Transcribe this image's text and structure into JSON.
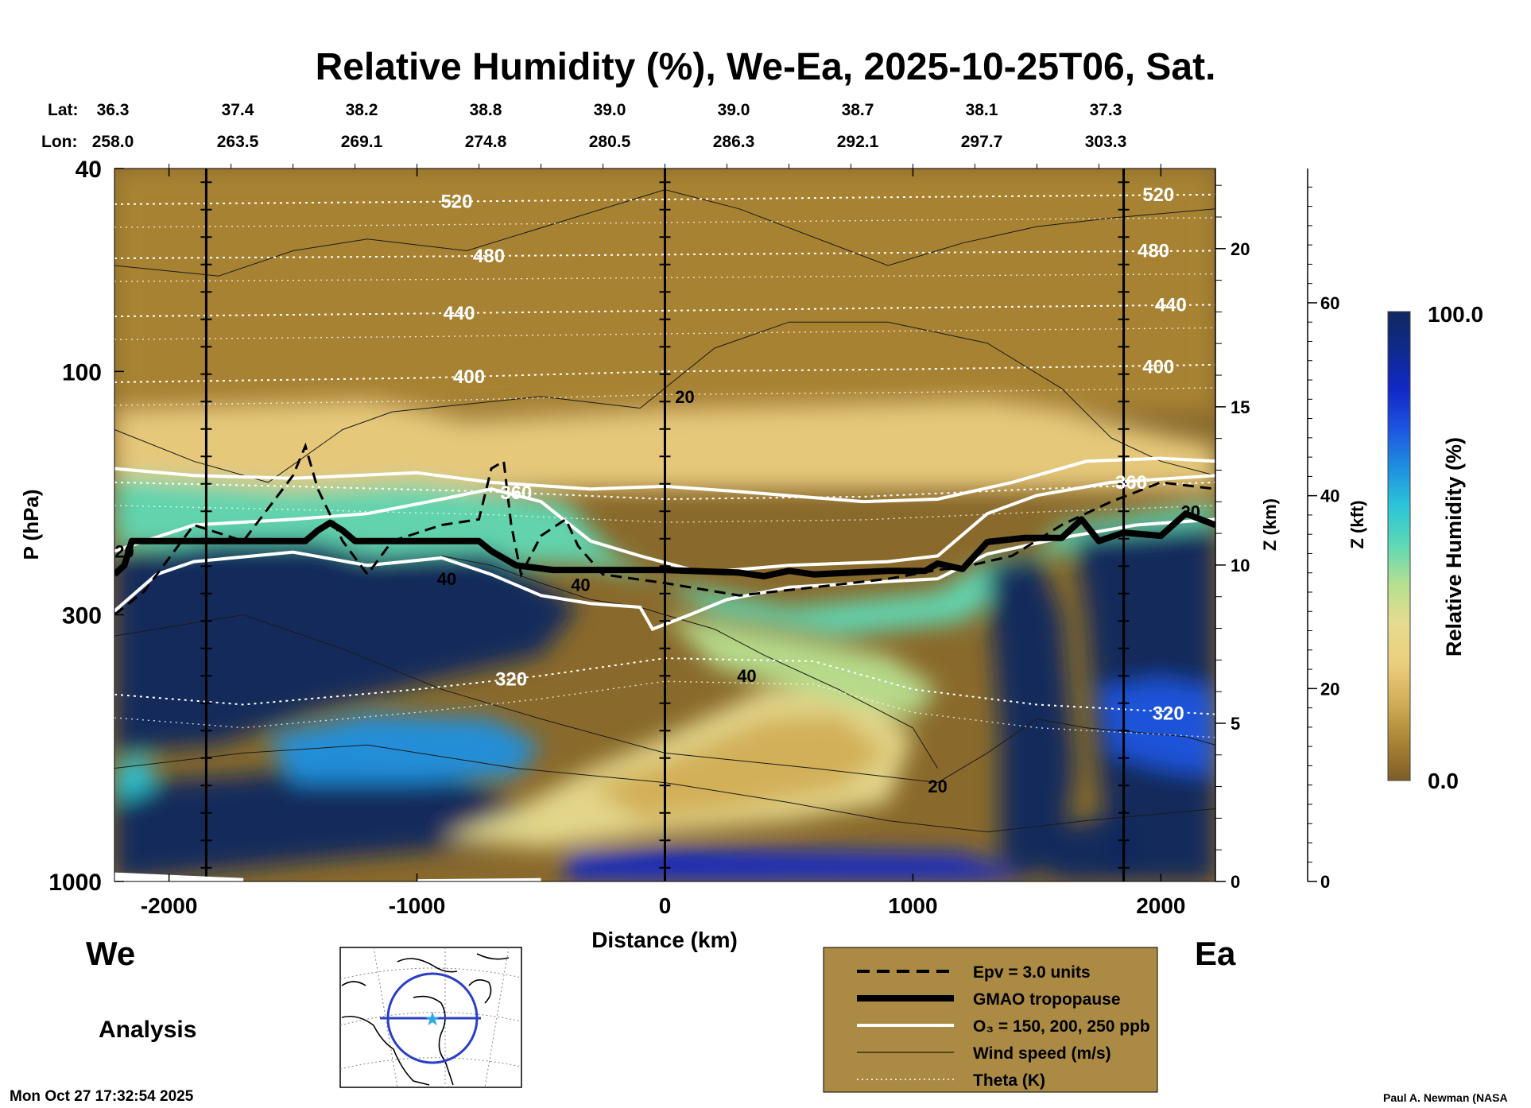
{
  "chart_data": {
    "type": "heatmap",
    "title": "Relative Humidity (%), We-Ea, 2025-10-25T06, Sat.",
    "xlabel": "Distance (km)",
    "ylabel": "P (hPa)",
    "z_km_label": "Z (km)",
    "z_kft_label": "Z (kft)",
    "colorbar_label": "Relative Humidity (%)",
    "colorbar_max_label": "100.0",
    "colorbar_min_label": "0.0",
    "colorbar_range": [
      0,
      100
    ],
    "xlim": [
      -2220,
      2220
    ],
    "ylim_hpa": [
      1000,
      40
    ],
    "x_ticks": [
      -2000,
      -1000,
      0,
      1000,
      2000
    ],
    "x_tick_labels": [
      "-2000",
      "-1000",
      "0",
      "1000",
      "2000"
    ],
    "p_ticks": [
      40,
      100,
      300,
      1000
    ],
    "p_tick_labels": [
      "40",
      "100",
      "300",
      "1000"
    ],
    "zkm_ticks": [
      0,
      5,
      10,
      15,
      20
    ],
    "zkm_tick_labels": [
      "0",
      "5",
      "10",
      "15",
      "20"
    ],
    "zkft_ticks": [
      0,
      20,
      40,
      60
    ],
    "zkft_tick_labels": [
      "0",
      "20",
      "40",
      "60"
    ],
    "lat_label": "Lat:",
    "lon_label": "Lon:",
    "lat_values": [
      "36.3",
      "37.4",
      "38.2",
      "38.8",
      "39.0",
      "39.0",
      "38.7",
      "38.1",
      "37.3"
    ],
    "lon_values": [
      "258.0",
      "263.5",
      "269.1",
      "274.8",
      "280.5",
      "286.3",
      "292.1",
      "297.7",
      "303.3"
    ],
    "vertical_markers_km": [
      -1850,
      0,
      1850
    ],
    "tropopause_hpa": [
      [
        -2220,
        250
      ],
      [
        -2180,
        240
      ],
      [
        -2150,
        215
      ],
      [
        -1900,
        215
      ],
      [
        -1450,
        215
      ],
      [
        -1400,
        205
      ],
      [
        -1350,
        198
      ],
      [
        -1300,
        205
      ],
      [
        -1250,
        215
      ],
      [
        -750,
        215
      ],
      [
        -700,
        225
      ],
      [
        -600,
        240
      ],
      [
        -450,
        245
      ],
      [
        0,
        245
      ],
      [
        300,
        248
      ],
      [
        400,
        252
      ],
      [
        500,
        246
      ],
      [
        600,
        250
      ],
      [
        900,
        246
      ],
      [
        1050,
        246
      ],
      [
        1100,
        238
      ],
      [
        1200,
        244
      ],
      [
        1300,
        216
      ],
      [
        1450,
        212
      ],
      [
        1600,
        212
      ],
      [
        1680,
        195
      ],
      [
        1750,
        215
      ],
      [
        1850,
        207
      ],
      [
        2000,
        210
      ],
      [
        2100,
        190
      ],
      [
        2220,
        200
      ]
    ],
    "theta_contours_K": [
      {
        "K": 320,
        "hpa": [
          [
            -2220,
            430
          ],
          [
            -1700,
            450
          ],
          [
            -1000,
            420
          ],
          [
            -500,
            395
          ],
          [
            0,
            365
          ],
          [
            600,
            370
          ],
          [
            1000,
            420
          ],
          [
            1500,
            450
          ],
          [
            2220,
            470
          ]
        ],
        "label_x": -620
      },
      {
        "K": 360,
        "hpa": [
          [
            -2220,
            165
          ],
          [
            -1500,
            168
          ],
          [
            -700,
            172
          ],
          [
            0,
            178
          ],
          [
            800,
            176
          ],
          [
            1500,
            170
          ],
          [
            2220,
            165
          ]
        ],
        "label_x": -600
      },
      {
        "K": 400,
        "hpa": [
          [
            -2220,
            105
          ],
          [
            -1000,
            103
          ],
          [
            0,
            100
          ],
          [
            1000,
            99
          ],
          [
            2220,
            97
          ]
        ],
        "label_x": -790
      },
      {
        "K": 440,
        "hpa": [
          [
            -2220,
            78
          ],
          [
            -1000,
            77
          ],
          [
            0,
            76
          ],
          [
            1000,
            75
          ],
          [
            2220,
            74
          ]
        ],
        "label_x": -830
      },
      {
        "K": 480,
        "hpa": [
          [
            -2220,
            60
          ],
          [
            -1000,
            59.5
          ],
          [
            0,
            59
          ],
          [
            1000,
            58.5
          ],
          [
            2220,
            58
          ]
        ],
        "label_x": -710
      },
      {
        "K": 520,
        "hpa": [
          [
            -2220,
            47
          ],
          [
            -1000,
            46.5
          ],
          [
            0,
            46
          ],
          [
            1000,
            45.5
          ],
          [
            2220,
            45
          ]
        ],
        "label_x": -840
      }
    ],
    "extra_contour_labels": [
      {
        "text": "360",
        "x": 1880,
        "hpa": 165
      },
      {
        "text": "400",
        "x": 1990,
        "hpa": 98
      },
      {
        "text": "440",
        "x": 2040,
        "hpa": 74
      },
      {
        "text": "480",
        "x": 1970,
        "hpa": 58
      },
      {
        "text": "520",
        "x": 1990,
        "hpa": 45
      },
      {
        "text": "320",
        "x": 2030,
        "hpa": 468
      }
    ],
    "wind_labels": [
      {
        "text": "20",
        "x": 80,
        "hpa": 112
      },
      {
        "text": "40",
        "x": 330,
        "hpa": 395
      },
      {
        "text": "20",
        "x": 1100,
        "hpa": 650
      },
      {
        "text": "20",
        "x": -2180,
        "hpa": 225
      },
      {
        "text": "40",
        "x": -880,
        "hpa": 255
      },
      {
        "text": "40",
        "x": -340,
        "hpa": 262
      },
      {
        "text": "20",
        "x": 2120,
        "hpa": 188
      }
    ],
    "wind_contours": [
      [
        [
          -2220,
          130
        ],
        [
          -1900,
          150
        ],
        [
          -1600,
          165
        ],
        [
          -1300,
          130
        ],
        [
          -1100,
          120
        ],
        [
          -500,
          112
        ],
        [
          -100,
          118
        ],
        [
          200,
          90
        ],
        [
          500,
          80
        ],
        [
          900,
          80
        ],
        [
          1300,
          88
        ],
        [
          1600,
          108
        ],
        [
          1800,
          135
        ],
        [
          2000,
          150
        ],
        [
          2220,
          160
        ]
      ],
      [
        [
          -2220,
          62
        ],
        [
          -1800,
          65
        ],
        [
          -1500,
          58
        ],
        [
          -1200,
          55
        ],
        [
          -800,
          58
        ],
        [
          0,
          44
        ],
        [
          300,
          48
        ],
        [
          900,
          62
        ],
        [
          1200,
          56
        ],
        [
          1500,
          52
        ],
        [
          1800,
          50
        ],
        [
          2220,
          48
        ]
      ],
      [
        [
          -2220,
          330
        ],
        [
          -1700,
          300
        ],
        [
          -1300,
          350
        ],
        [
          -900,
          420
        ],
        [
          -500,
          480
        ],
        [
          0,
          560
        ],
        [
          600,
          600
        ],
        [
          1100,
          640
        ],
        [
          1300,
          560
        ],
        [
          1500,
          480
        ],
        [
          1700,
          500
        ],
        [
          2100,
          520
        ],
        [
          2220,
          540
        ]
      ],
      [
        [
          -2220,
          600
        ],
        [
          -1700,
          560
        ],
        [
          -1200,
          540
        ],
        [
          -600,
          600
        ],
        [
          0,
          640
        ],
        [
          500,
          700
        ],
        [
          900,
          760
        ],
        [
          1300,
          800
        ],
        [
          1700,
          760
        ],
        [
          2220,
          720
        ]
      ],
      [
        [
          -900,
          230
        ],
        [
          -700,
          240
        ],
        [
          -500,
          260
        ],
        [
          -300,
          280
        ],
        [
          -100,
          290
        ],
        [
          0,
          300
        ],
        [
          200,
          320
        ],
        [
          400,
          360
        ],
        [
          700,
          420
        ],
        [
          1000,
          500
        ],
        [
          1100,
          600
        ]
      ]
    ],
    "epv_contours": [
      [
        [
          -2220,
          300
        ],
        [
          -2100,
          270
        ],
        [
          -1900,
          200
        ],
        [
          -1700,
          215
        ],
        [
          -1500,
          160
        ],
        [
          -1450,
          140
        ],
        [
          -1400,
          170
        ],
        [
          -1300,
          215
        ],
        [
          -1200,
          250
        ],
        [
          -1100,
          215
        ],
        [
          -900,
          200
        ],
        [
          -750,
          195
        ],
        [
          -700,
          155
        ],
        [
          -650,
          150
        ],
        [
          -620,
          200
        ],
        [
          -580,
          250
        ],
        [
          -500,
          210
        ],
        [
          -400,
          195
        ],
        [
          -350,
          220
        ],
        [
          -250,
          250
        ],
        [
          0,
          260
        ],
        [
          300,
          275
        ],
        [
          600,
          265
        ],
        [
          900,
          255
        ],
        [
          1100,
          245
        ],
        [
          1200,
          242
        ],
        [
          1400,
          230
        ],
        [
          1600,
          200
        ],
        [
          1800,
          180
        ],
        [
          2000,
          165
        ],
        [
          2220,
          170
        ]
      ]
    ],
    "o3_contours_ppb": [
      {
        "ppb": 150,
        "hpa": [
          [
            -2220,
            295
          ],
          [
            -2050,
            250
          ],
          [
            -1900,
            236
          ],
          [
            -1500,
            226
          ],
          [
            -1200,
            240
          ],
          [
            -900,
            232
          ],
          [
            -700,
            250
          ],
          [
            -500,
            275
          ],
          [
            -300,
            285
          ],
          [
            -100,
            290
          ],
          [
            -50,
            320
          ],
          [
            100,
            300
          ],
          [
            250,
            280
          ],
          [
            500,
            265
          ],
          [
            900,
            258
          ],
          [
            1100,
            255
          ],
          [
            1300,
            228
          ],
          [
            1600,
            212
          ],
          [
            1900,
            200
          ],
          [
            2220,
            195
          ]
        ]
      },
      {
        "ppb": 200,
        "hpa": [
          [
            -2220,
            225
          ],
          [
            -1900,
            200
          ],
          [
            -1500,
            195
          ],
          [
            -1200,
            190
          ],
          [
            -900,
            178
          ],
          [
            -700,
            170
          ],
          [
            -500,
            180
          ],
          [
            -300,
            215
          ],
          [
            -100,
            230
          ],
          [
            150,
            248
          ],
          [
            500,
            240
          ],
          [
            900,
            236
          ],
          [
            1100,
            230
          ],
          [
            1300,
            190
          ],
          [
            1500,
            175
          ],
          [
            1800,
            165
          ],
          [
            2220,
            160
          ]
        ]
      },
      {
        "ppb": 250,
        "hpa": [
          [
            -2220,
            155
          ],
          [
            -1900,
            160
          ],
          [
            -1500,
            162
          ],
          [
            -1000,
            158
          ],
          [
            -700,
            165
          ],
          [
            -300,
            170
          ],
          [
            0,
            168
          ],
          [
            300,
            172
          ],
          [
            800,
            180
          ],
          [
            1100,
            178
          ],
          [
            1400,
            165
          ],
          [
            1700,
            150
          ],
          [
            2000,
            148
          ],
          [
            2220,
            150
          ]
        ]
      }
    ]
  },
  "legend": {
    "items": [
      {
        "label": "Epv = 3.0 units",
        "kind": "epv"
      },
      {
        "label": "GMAO tropopause",
        "kind": "tropopause"
      },
      {
        "label": "O₃ = 150, 200, 250 ppb",
        "kind": "o3"
      },
      {
        "label": "Wind speed (m/s)",
        "kind": "wind"
      },
      {
        "label": "Theta (K)",
        "kind": "theta"
      }
    ],
    "background": "#ab8a43"
  },
  "labels": {
    "west": "We",
    "east": "Ea",
    "analysis": "Analysis",
    "timestamp": "Mon Oct 27 17:32:54 2025",
    "credit": "Paul A. Newman (NASA"
  },
  "colors": {
    "colorbar_stops": [
      "#7d5d28",
      "#a98434",
      "#d2ae56",
      "#ebce7f",
      "#e7db8e",
      "#b7df8f",
      "#60d9b4",
      "#2bc6d8",
      "#1e90e0",
      "#1d55e0",
      "#1228c8",
      "#0e2a8e",
      "#10285e"
    ]
  }
}
